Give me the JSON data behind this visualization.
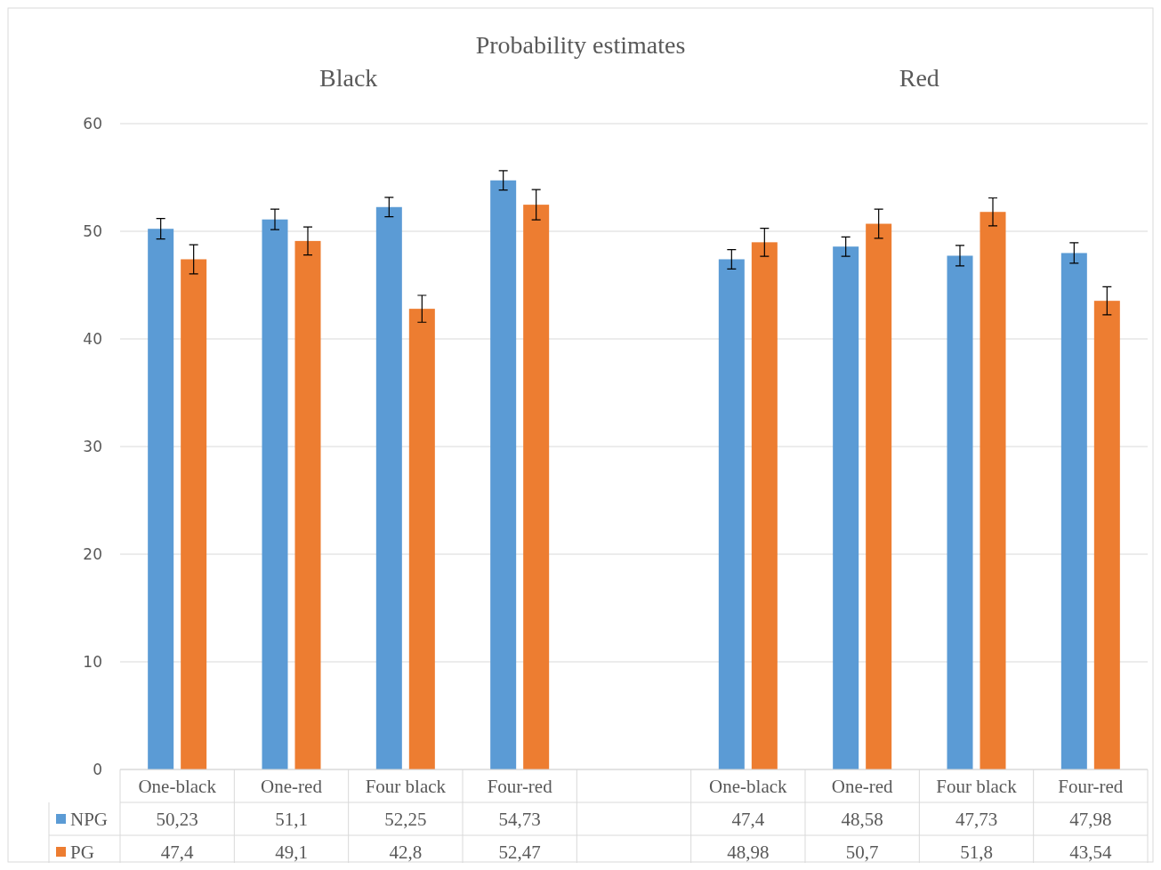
{
  "chart_data": {
    "type": "bar",
    "title": "Probability estimates",
    "annotations": [
      "Black",
      "Red"
    ],
    "categories": [
      "One-black",
      "One-red",
      "Four black",
      "Four-red",
      null,
      "One-black",
      "One-red",
      "Four black",
      "Four-red"
    ],
    "series": [
      {
        "name": "NPG",
        "color": "#5b9bd5",
        "values": [
          50.23,
          51.1,
          52.25,
          54.73,
          null,
          47.4,
          48.58,
          47.73,
          47.98
        ],
        "errors": [
          0.95,
          0.95,
          0.9,
          0.9,
          null,
          0.9,
          0.9,
          0.95,
          0.95
        ],
        "value_labels": [
          "50,23",
          "51,1",
          "52,25",
          "54,73",
          null,
          "47,4",
          "48,58",
          "47,73",
          "47,98"
        ]
      },
      {
        "name": "PG",
        "color": "#ed7d31",
        "values": [
          47.4,
          49.1,
          42.8,
          52.47,
          null,
          48.98,
          50.7,
          51.8,
          43.54
        ],
        "errors": [
          1.35,
          1.3,
          1.25,
          1.4,
          null,
          1.3,
          1.35,
          1.3,
          1.3
        ],
        "value_labels": [
          "47,4",
          "49,1",
          "42,8",
          "52,47",
          null,
          "48,98",
          "50,7",
          "51,8",
          "43,54"
        ]
      }
    ],
    "ylim": [
      0,
      60
    ],
    "yticks": [
      0,
      10,
      20,
      30,
      40,
      50,
      60
    ],
    "grid": "y",
    "legend": "bottom"
  }
}
